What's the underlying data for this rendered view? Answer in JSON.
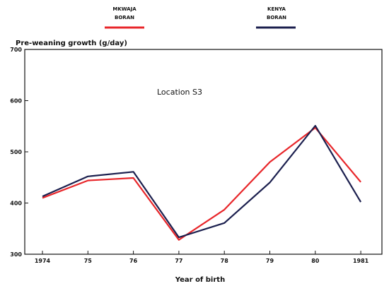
{
  "chart_data": {
    "type": "line",
    "title": "",
    "ylabel": "Pre-weaning growth (g/day)",
    "xlabel": "Year of birth",
    "annotation": "Location S3",
    "categories": [
      "1974",
      "75",
      "76",
      "77",
      "78",
      "79",
      "80",
      "1981"
    ],
    "ylim": [
      300,
      700
    ],
    "yticks": [
      300,
      400,
      500,
      600,
      700
    ],
    "grid": false,
    "legend_position": "top",
    "series": [
      {
        "name_line1": "MKWAJA",
        "name_line2": "BORAN",
        "color": "#e8262a",
        "values": [
          410,
          444,
          449,
          328,
          387,
          480,
          547,
          441
        ]
      },
      {
        "name_line1": "KENYA",
        "name_line2": "BORAN",
        "color": "#1b1f4e",
        "values": [
          413,
          452,
          461,
          333,
          361,
          440,
          551,
          402
        ]
      }
    ]
  }
}
